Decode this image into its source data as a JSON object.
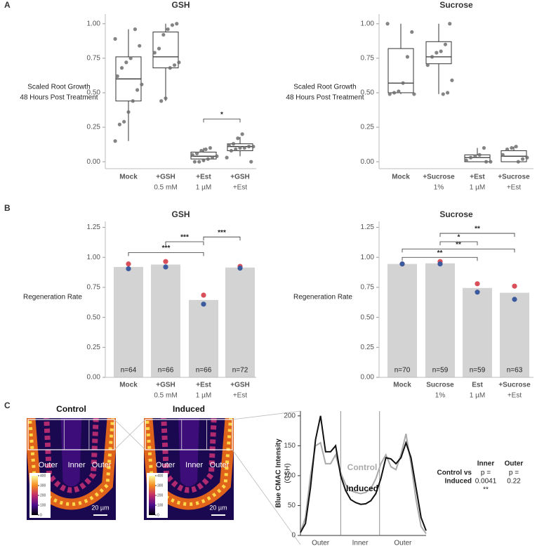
{
  "panel_labels": [
    "A",
    "B",
    "C"
  ],
  "chart_data": [
    {
      "type": "box",
      "title": "GSH",
      "ylabel": [
        "Scaled Root Growth",
        "48 Hours Post Treatment"
      ],
      "categories": [
        [
          "Mock"
        ],
        [
          "+GSH",
          "0.5 mM"
        ],
        [
          "+Est",
          "1 µM"
        ],
        [
          "+GSH",
          "+Est"
        ]
      ],
      "ylim": [
        -0.05,
        1.07
      ],
      "yticks": [
        {
          "value": 0,
          "label": "0.00"
        },
        {
          "value": 0.25,
          "label": "0.25"
        },
        {
          "value": 0.5,
          "label": "0.50"
        },
        {
          "value": 0.75,
          "label": "0.75"
        },
        {
          "value": 1,
          "label": "1.00"
        }
      ],
      "point_color": "#6e6e6e",
      "boxes": [
        {
          "min": 0.15,
          "q1": 0.44,
          "median": 0.6,
          "q3": 0.76,
          "max": 0.96,
          "points": [
            0.89,
            0.84,
            0.96,
            0.75,
            0.72,
            0.68,
            0.62,
            0.56,
            0.52,
            0.44,
            0.36,
            0.29,
            0.27,
            0.15
          ]
        },
        {
          "min": 0.44,
          "q1": 0.68,
          "median": 0.76,
          "q3": 0.94,
          "max": 1.0,
          "points": [
            1.0,
            0.99,
            0.96,
            0.92,
            0.82,
            0.79,
            0.72,
            0.7,
            0.68,
            0.46,
            0.44
          ]
        },
        {
          "min": 0.0,
          "q1": 0.02,
          "median": 0.04,
          "q3": 0.07,
          "max": 0.1,
          "points": [
            0.1,
            0.09,
            0.08,
            0.06,
            0.05,
            0.04,
            0.03,
            0.02,
            0.01,
            0.0,
            0.0
          ]
        },
        {
          "min": 0.04,
          "q1": 0.08,
          "median": 0.11,
          "q3": 0.13,
          "max": 0.18,
          "points": [
            0.2,
            0.17,
            0.13,
            0.12,
            0.11,
            0.11,
            0.1,
            0.1,
            0.09,
            0.08,
            0.03,
            0.0
          ]
        }
      ],
      "significance": [
        {
          "from": 2,
          "to": 3,
          "y": 0.31,
          "label": "*"
        }
      ]
    },
    {
      "type": "box",
      "title": "Sucrose",
      "ylabel": [
        "Scaled Root Growth",
        "48 Hours Post Treatment"
      ],
      "categories": [
        [
          "Mock"
        ],
        [
          "+Sucrose",
          "1%"
        ],
        [
          "+Est",
          "1 µM"
        ],
        [
          "+Sucrose",
          "+Est"
        ]
      ],
      "ylim": [
        -0.05,
        1.07
      ],
      "yticks": [
        {
          "value": 0,
          "label": "0.00"
        },
        {
          "value": 0.25,
          "label": "0.25"
        },
        {
          "value": 0.5,
          "label": "0.50"
        },
        {
          "value": 0.75,
          "label": "0.75"
        },
        {
          "value": 1,
          "label": "1.00"
        }
      ],
      "point_color": "#6e6e6e",
      "boxes": [
        {
          "min": 0.49,
          "q1": 0.5,
          "median": 0.57,
          "q3": 0.82,
          "max": 1.0,
          "points": [
            1.0,
            0.94,
            0.76,
            0.57,
            0.51,
            0.5,
            0.49,
            0.49
          ]
        },
        {
          "min": 0.49,
          "q1": 0.71,
          "median": 0.76,
          "q3": 0.87,
          "max": 1.0,
          "points": [
            1.0,
            0.85,
            0.8,
            0.79,
            0.76,
            0.7,
            0.59,
            0.5,
            0.49
          ]
        },
        {
          "min": 0.0,
          "q1": 0.0,
          "median": 0.03,
          "q3": 0.05,
          "max": 0.1,
          "points": [
            0.1,
            0.05,
            0.04,
            0.03,
            0.01,
            0.0,
            0.0
          ]
        },
        {
          "min": 0.0,
          "q1": 0.0,
          "median": 0.04,
          "q3": 0.08,
          "max": 0.11,
          "points": [
            0.11,
            0.1,
            0.09,
            0.05,
            0.03,
            0.02,
            0.0
          ]
        }
      ]
    },
    {
      "type": "bar",
      "title": "GSH",
      "ylabel": [
        "Regeneration Rate"
      ],
      "categories": [
        [
          "Mock"
        ],
        [
          "+GSH",
          "0.5 mM"
        ],
        [
          "+Est",
          "1 µM"
        ],
        [
          "+GSH",
          "+Est"
        ]
      ],
      "ylim": [
        0,
        1.3
      ],
      "yticks": [
        {
          "value": 0,
          "label": "0.00"
        },
        {
          "value": 0.25,
          "label": "0.25"
        },
        {
          "value": 0.5,
          "label": "0.50"
        },
        {
          "value": 0.75,
          "label": "0.75"
        },
        {
          "value": 1,
          "label": "1.00"
        },
        {
          "value": 1.25,
          "label": "1.25"
        }
      ],
      "color": "#d3d3d3",
      "values": [
        0.92,
        0.94,
        0.645,
        0.915
      ],
      "n_labels": [
        "n=64",
        "n=66",
        "n=66",
        "n=72"
      ],
      "replicates": [
        {
          "color": "#d9505a",
          "values": [
            0.945,
            0.965,
            0.685,
            0.925
          ]
        },
        {
          "color": "#3b5b9e",
          "values": [
            0.905,
            0.92,
            0.61,
            0.91
          ]
        }
      ],
      "significance": [
        {
          "from": 0,
          "to": 2,
          "y": 1.04,
          "label": "***"
        },
        {
          "from": 1,
          "to": 2,
          "y": 1.13,
          "label": "***"
        },
        {
          "from": 2,
          "to": 3,
          "y": 1.17,
          "label": "***"
        }
      ]
    },
    {
      "type": "bar",
      "title": "Sucrose",
      "ylabel": [
        "Regeneration Rate"
      ],
      "categories": [
        [
          "Mock"
        ],
        [
          "Sucrose",
          "1%"
        ],
        [
          "Est",
          "1 µM"
        ],
        [
          "+Sucrose",
          "+Est"
        ]
      ],
      "ylim": [
        0,
        1.3
      ],
      "yticks": [
        {
          "value": 0,
          "label": "0.00"
        },
        {
          "value": 0.25,
          "label": "0.25"
        },
        {
          "value": 0.5,
          "label": "0.50"
        },
        {
          "value": 0.75,
          "label": "0.75"
        },
        {
          "value": 1,
          "label": "1.00"
        },
        {
          "value": 1.25,
          "label": "1.25"
        }
      ],
      "color": "#d3d3d3",
      "values": [
        0.945,
        0.95,
        0.745,
        0.705
      ],
      "n_labels": [
        "n=70",
        "n=59",
        "n=59",
        "n=63"
      ],
      "replicates": [
        {
          "color": "#d9505a",
          "values": [
            0.945,
            0.965,
            0.78,
            0.76
          ]
        },
        {
          "color": "#3b5b9e",
          "values": [
            0.945,
            0.945,
            0.71,
            0.65
          ]
        }
      ],
      "significance": [
        {
          "from": 0,
          "to": 2,
          "y": 1.0,
          "label": "**"
        },
        {
          "from": 0,
          "to": 3,
          "y": 1.07,
          "label": "**"
        },
        {
          "from": 1,
          "to": 2,
          "y": 1.13,
          "label": "*"
        },
        {
          "from": 1,
          "to": 3,
          "y": 1.2,
          "label": "**"
        }
      ]
    },
    {
      "type": "line",
      "ylabel": [
        "Blue CMAC Intensity",
        "(GSH)"
      ],
      "x": [
        0,
        4,
        8,
        12,
        16,
        20,
        24,
        28,
        32,
        36,
        40,
        44,
        48,
        52,
        56,
        60,
        64,
        68,
        72,
        76,
        80,
        84,
        88,
        92,
        96,
        100
      ],
      "xlim": [
        0,
        100
      ],
      "ylim": [
        0,
        208
      ],
      "yticks": [
        0,
        50,
        100,
        150,
        200
      ],
      "regions": {
        "labels": [
          "Outer",
          "Inner",
          "Outer"
        ],
        "edges": [
          0,
          32,
          63,
          100
        ]
      },
      "series": [
        {
          "name": "Control",
          "color": "#aaaaaa",
          "values": [
            5,
            30,
            100,
            150,
            155,
            120,
            120,
            135,
            105,
            85,
            75,
            72,
            70,
            72,
            78,
            95,
            120,
            135,
            115,
            110,
            135,
            170,
            120,
            60,
            15,
            3
          ]
        },
        {
          "name": "Induced",
          "color": "#111111",
          "values": [
            5,
            20,
            80,
            160,
            200,
            140,
            140,
            150,
            100,
            75,
            60,
            55,
            52,
            53,
            58,
            70,
            95,
            130,
            128,
            120,
            130,
            155,
            130,
            80,
            30,
            8
          ]
        }
      ]
    }
  ],
  "micrographs": {
    "panels": [
      {
        "title": "Control"
      },
      {
        "title": "Induced"
      }
    ],
    "region_labels": [
      "Outer",
      "Inner",
      "Outer"
    ],
    "scale_bar": "20 µm",
    "colorbar_ticks": [
      0,
      100,
      200,
      300,
      400
    ],
    "colorbar_range": [
      0,
      400
    ]
  },
  "stats_table": {
    "columns": [
      "Inner",
      "Outer"
    ],
    "row_label": [
      "Control vs",
      "Induced"
    ],
    "cells": [
      [
        "p =",
        "0.0041",
        "**"
      ],
      [
        "p =",
        "0.22"
      ]
    ]
  }
}
